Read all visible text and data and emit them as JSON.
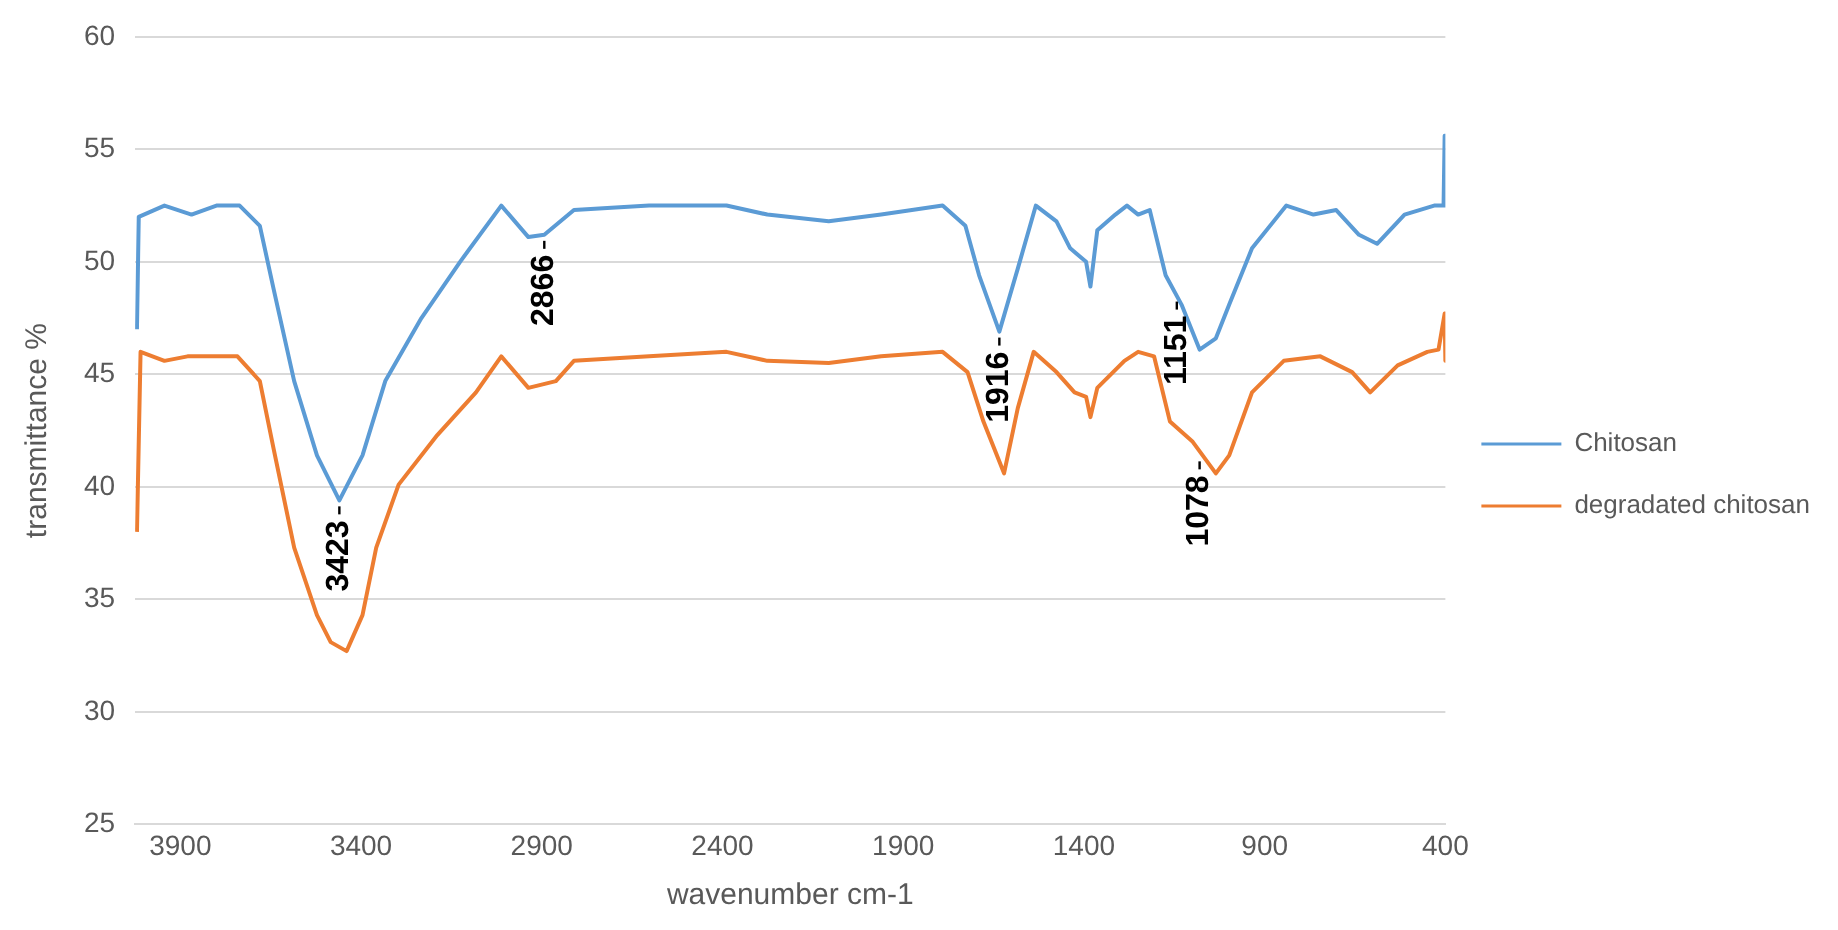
{
  "chart_data": {
    "type": "line",
    "xlabel": "wavenumber cm-1",
    "ylabel": "transmittance %",
    "xlim": [
      4025,
      400
    ],
    "xticks": [
      3900,
      3400,
      2900,
      2400,
      1900,
      1400,
      900,
      400
    ],
    "ylim": [
      25,
      60
    ],
    "yticks": [
      25,
      30,
      35,
      40,
      45,
      50,
      55,
      60
    ],
    "grid": "y",
    "legend": "right",
    "line_style": "solid",
    "series": [
      {
        "name": "Chitosan",
        "color": "#5b9bd5",
        "x": [
          4020,
          4015,
          3944,
          3869,
          3800,
          3736,
          3680,
          3642,
          3585,
          3522,
          3460,
          3396,
          3333,
          3233,
          3126,
          3012,
          2937,
          2893,
          2811,
          2603,
          2389,
          2276,
          2106,
          1961,
          1791,
          1728,
          1690,
          1634,
          1583,
          1533,
          1476,
          1438,
          1394,
          1382,
          1363,
          1313,
          1281,
          1250,
          1218,
          1174,
          1130,
          1080,
          1035,
          998,
          935,
          840,
          765,
          702,
          639,
          589,
          513,
          431,
          405,
          402,
          400
        ],
        "values": [
          47,
          52,
          52.5,
          52.1,
          52.5,
          52.5,
          51.6,
          48.8,
          44.7,
          41.4,
          39.4,
          41.4,
          44.7,
          47.5,
          50,
          52.5,
          51.1,
          51.2,
          52.3,
          52.5,
          52.5,
          52.1,
          51.8,
          52.1,
          52.5,
          51.6,
          49.4,
          46.9,
          49.7,
          52.5,
          51.8,
          50.6,
          50,
          48.9,
          51.4,
          52.1,
          52.5,
          52.1,
          52.3,
          49.4,
          48.1,
          46.1,
          46.6,
          48.1,
          50.6,
          52.5,
          52.1,
          52.3,
          51.2,
          50.8,
          52.1,
          52.5,
          52.5,
          55.6,
          52.5
        ]
      },
      {
        "name": "degradated chitosan",
        "color": "#ed7d31",
        "x": [
          4020,
          4010,
          3944,
          3880,
          3742,
          3680,
          3642,
          3585,
          3522,
          3484,
          3440,
          3396,
          3358,
          3296,
          3189,
          3082,
          3012,
          2937,
          2861,
          2811,
          2603,
          2389,
          2276,
          2106,
          1961,
          1791,
          1722,
          1678,
          1621,
          1583,
          1539,
          1476,
          1426,
          1394,
          1382,
          1363,
          1288,
          1250,
          1206,
          1162,
          1099,
          1035,
          998,
          935,
          847,
          746,
          658,
          608,
          532,
          450,
          419,
          402,
          400
        ],
        "values": [
          38,
          46,
          45.6,
          45.8,
          45.8,
          44.7,
          41.7,
          37.3,
          34.3,
          33.1,
          32.7,
          34.3,
          37.3,
          40.1,
          42.3,
          44.2,
          45.8,
          44.4,
          44.7,
          45.6,
          45.8,
          46,
          45.6,
          45.5,
          45.8,
          46,
          45.1,
          42.9,
          40.6,
          43.5,
          46,
          45.1,
          44.2,
          44,
          43.1,
          44.4,
          45.6,
          46,
          45.8,
          42.9,
          42,
          40.6,
          41.4,
          44.2,
          45.6,
          45.8,
          45.1,
          44.2,
          45.4,
          46,
          46.1,
          47.7,
          45.6
        ]
      }
    ],
    "annotations": [
      {
        "text": "3423",
        "x": 3460,
        "y": 39.4
      },
      {
        "text": "2866",
        "x": 2893,
        "y": 51.2
      },
      {
        "text": "1916",
        "x": 1634,
        "y": 46.9
      },
      {
        "text": "1151",
        "x": 1143,
        "y": 48.5
      },
      {
        "text": "1078",
        "x": 1080,
        "y": 41.4
      }
    ]
  }
}
